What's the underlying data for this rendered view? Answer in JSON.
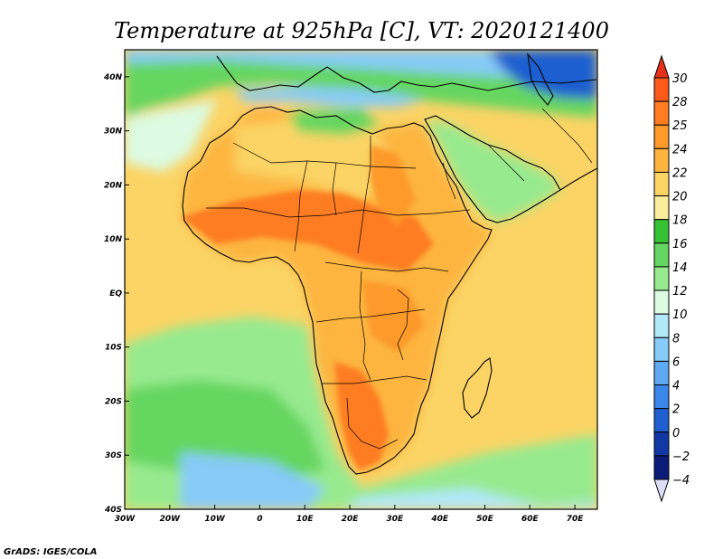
{
  "title": "Temperature at 925hPa [C], VT: 2020121400",
  "credit": "GrADS: IGES/COLA",
  "map": {
    "lon_range": [
      -30,
      75
    ],
    "lat_range": [
      -40,
      45
    ],
    "x_ticks": [
      {
        "value": -30,
        "label": "30W"
      },
      {
        "value": -20,
        "label": "20W"
      },
      {
        "value": -10,
        "label": "10W"
      },
      {
        "value": 0,
        "label": "0"
      },
      {
        "value": 10,
        "label": "10E"
      },
      {
        "value": 20,
        "label": "20E"
      },
      {
        "value": 30,
        "label": "30E"
      },
      {
        "value": 40,
        "label": "40E"
      },
      {
        "value": 50,
        "label": "50E"
      },
      {
        "value": 60,
        "label": "60E"
      },
      {
        "value": 70,
        "label": "70E"
      }
    ],
    "y_ticks": [
      {
        "value": 40,
        "label": "40N"
      },
      {
        "value": 30,
        "label": "30N"
      },
      {
        "value": 20,
        "label": "20N"
      },
      {
        "value": 10,
        "label": "10N"
      },
      {
        "value": 0,
        "label": "EQ"
      },
      {
        "value": -10,
        "label": "10S"
      },
      {
        "value": -20,
        "label": "20S"
      },
      {
        "value": -30,
        "label": "30S"
      },
      {
        "value": -40,
        "label": "40S"
      }
    ]
  },
  "colorbar": {
    "levels": [
      {
        "label": "30",
        "color": "#fd5a1b"
      },
      {
        "label": "28",
        "color": "#fe7d22"
      },
      {
        "label": "25",
        "color": "#fd9a2b"
      },
      {
        "label": "24",
        "color": "#fdb53f"
      },
      {
        "label": "22",
        "color": "#fbd465"
      },
      {
        "label": "20",
        "color": "#f9ec9b"
      },
      {
        "label": "18",
        "color": "#37c236"
      },
      {
        "label": "16",
        "color": "#65d661"
      },
      {
        "label": "14",
        "color": "#98ea8f"
      },
      {
        "label": "12",
        "color": "#dcfbe2"
      },
      {
        "label": "10",
        "color": "#b1e8fa"
      },
      {
        "label": "8",
        "color": "#87cbf8"
      },
      {
        "label": "6",
        "color": "#5fa9f4"
      },
      {
        "label": "4",
        "color": "#3b86e9"
      },
      {
        "label": "2",
        "color": "#1f5fd0"
      },
      {
        "label": "0",
        "color": "#1238a6"
      },
      {
        "label": "−2",
        "color": "#0a1b78"
      },
      {
        "label": "−4",
        "color": ""
      }
    ],
    "top_color": "#e5311a",
    "bottom_color": "#dedefb"
  },
  "colors": {
    "ocean_tropics": "#fbd465",
    "ocean_midlat": "#65d661",
    "ocean_south": "#98ea8f",
    "land_hot": "#fe7d22",
    "land_warm": "#fd9a2b",
    "land_mild": "#fdb53f",
    "med_sea": "#87cbf8",
    "cold": "#1f5fd0",
    "coast": "#000000"
  }
}
